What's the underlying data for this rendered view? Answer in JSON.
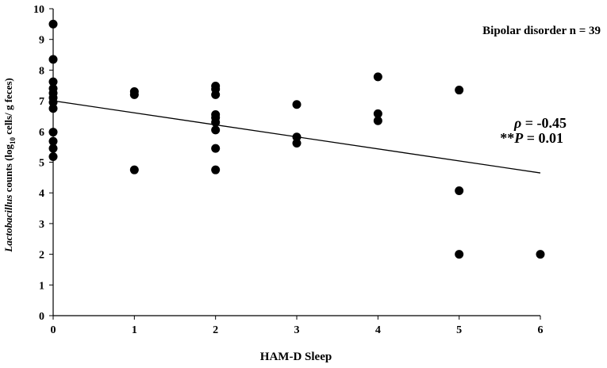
{
  "chart_data": {
    "type": "scatter",
    "title": "",
    "xlabel": "HAM-D Sleep",
    "ylabel": {
      "italic": "Lactobacillus",
      "part1": " counts (log",
      "sub": "10",
      "part2": " cells/ g feces)"
    },
    "xlim": [
      0,
      6
    ],
    "ylim": [
      0,
      10
    ],
    "xticks": [
      0,
      1,
      2,
      3,
      4,
      5,
      6
    ],
    "yticks": [
      0,
      1,
      2,
      3,
      4,
      5,
      6,
      7,
      8,
      9,
      10
    ],
    "grid": false,
    "points": [
      {
        "x": 0,
        "y": 9.5
      },
      {
        "x": 0,
        "y": 8.35
      },
      {
        "x": 0,
        "y": 7.62
      },
      {
        "x": 0,
        "y": 7.4
      },
      {
        "x": 0,
        "y": 7.25
      },
      {
        "x": 0,
        "y": 7.1
      },
      {
        "x": 0,
        "y": 6.95
      },
      {
        "x": 0,
        "y": 6.75
      },
      {
        "x": 0,
        "y": 5.98
      },
      {
        "x": 0,
        "y": 5.68
      },
      {
        "x": 0,
        "y": 5.45
      },
      {
        "x": 0,
        "y": 5.18
      },
      {
        "x": 1,
        "y": 7.3
      },
      {
        "x": 1,
        "y": 7.2
      },
      {
        "x": 1,
        "y": 4.75
      },
      {
        "x": 2,
        "y": 7.48
      },
      {
        "x": 2,
        "y": 7.38
      },
      {
        "x": 2,
        "y": 7.2
      },
      {
        "x": 2,
        "y": 6.55
      },
      {
        "x": 2,
        "y": 6.45
      },
      {
        "x": 2,
        "y": 6.3
      },
      {
        "x": 2,
        "y": 6.05
      },
      {
        "x": 2,
        "y": 5.45
      },
      {
        "x": 2,
        "y": 4.75
      },
      {
        "x": 3,
        "y": 6.88
      },
      {
        "x": 3,
        "y": 5.82
      },
      {
        "x": 3,
        "y": 5.62
      },
      {
        "x": 4,
        "y": 7.78
      },
      {
        "x": 4,
        "y": 6.58
      },
      {
        "x": 4,
        "y": 6.35
      },
      {
        "x": 5,
        "y": 7.35
      },
      {
        "x": 5,
        "y": 4.07
      },
      {
        "x": 5,
        "y": 2.0
      },
      {
        "x": 6,
        "y": 2.0
      }
    ],
    "trendline": {
      "x": [
        0,
        6
      ],
      "y": [
        7.0,
        4.65
      ]
    },
    "annotations": {
      "group": "Bipolar disorder n = 39",
      "rho_symbol": "ρ",
      "rho_text": " = -0.45",
      "p_stars": "**",
      "p_symbol": "P",
      "p_text": " =  0.01"
    },
    "colors": {
      "points": "#000000",
      "line": "#000000",
      "axes": "#000000"
    }
  }
}
